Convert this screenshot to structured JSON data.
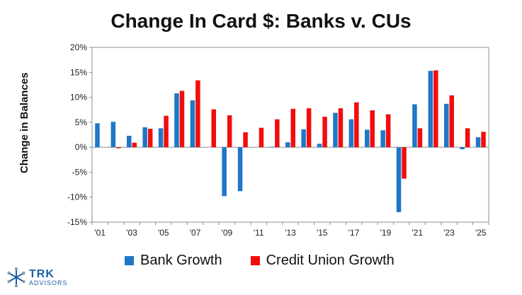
{
  "title": "Change In Card $: Banks v. CUs",
  "logo": {
    "name": "TRK",
    "sub": "ADVISORS"
  },
  "chart_data": {
    "type": "bar",
    "title": "Change In Card $: Banks v. CUs",
    "xlabel": "",
    "ylabel": "Change in Balances",
    "ylim": [
      -15,
      20
    ],
    "yticks": [
      "-15%",
      "-10%",
      "-5%",
      "0%",
      "5%",
      "10%",
      "15%",
      "20%"
    ],
    "ytick_values": [
      -15,
      -10,
      -5,
      0,
      5,
      10,
      15,
      20
    ],
    "grid": false,
    "legend": "bottom",
    "categories": [
      "2001",
      "2002",
      "2003",
      "2004",
      "2005",
      "2006",
      "2007",
      "2008",
      "2009",
      "2010",
      "2011",
      "2012",
      "2013",
      "2014",
      "2015",
      "2016",
      "2017",
      "2018",
      "2019",
      "2020",
      "2021",
      "2022",
      "2023",
      "2024",
      "2025"
    ],
    "xtick_labels": [
      "'01",
      "",
      "'03",
      "",
      "'05",
      "",
      "'07",
      "",
      "'09",
      "",
      "'11",
      "",
      "'13",
      "",
      "'15",
      "",
      "'17",
      "",
      "'19",
      "",
      "'21",
      "",
      "'23",
      "",
      "'25"
    ],
    "series": [
      {
        "name": "Bank Growth",
        "color": "#1f77c8",
        "values": [
          4.8,
          5.1,
          2.3,
          4.0,
          3.8,
          10.8,
          9.4,
          0.0,
          -9.8,
          -8.8,
          0.0,
          0.1,
          1.0,
          3.6,
          0.7,
          6.9,
          5.6,
          3.5,
          3.4,
          -13.0,
          8.6,
          15.3,
          8.7,
          -0.4,
          2.0
        ]
      },
      {
        "name": "Credit Union Growth",
        "color": "#f20d0d",
        "values": [
          0.0,
          -0.2,
          0.9,
          3.7,
          6.3,
          11.3,
          13.4,
          7.6,
          6.4,
          3.0,
          3.9,
          5.6,
          7.7,
          7.8,
          6.1,
          7.8,
          9.0,
          7.4,
          6.6,
          -6.3,
          3.8,
          15.4,
          10.4,
          3.8,
          3.1
        ]
      }
    ]
  }
}
